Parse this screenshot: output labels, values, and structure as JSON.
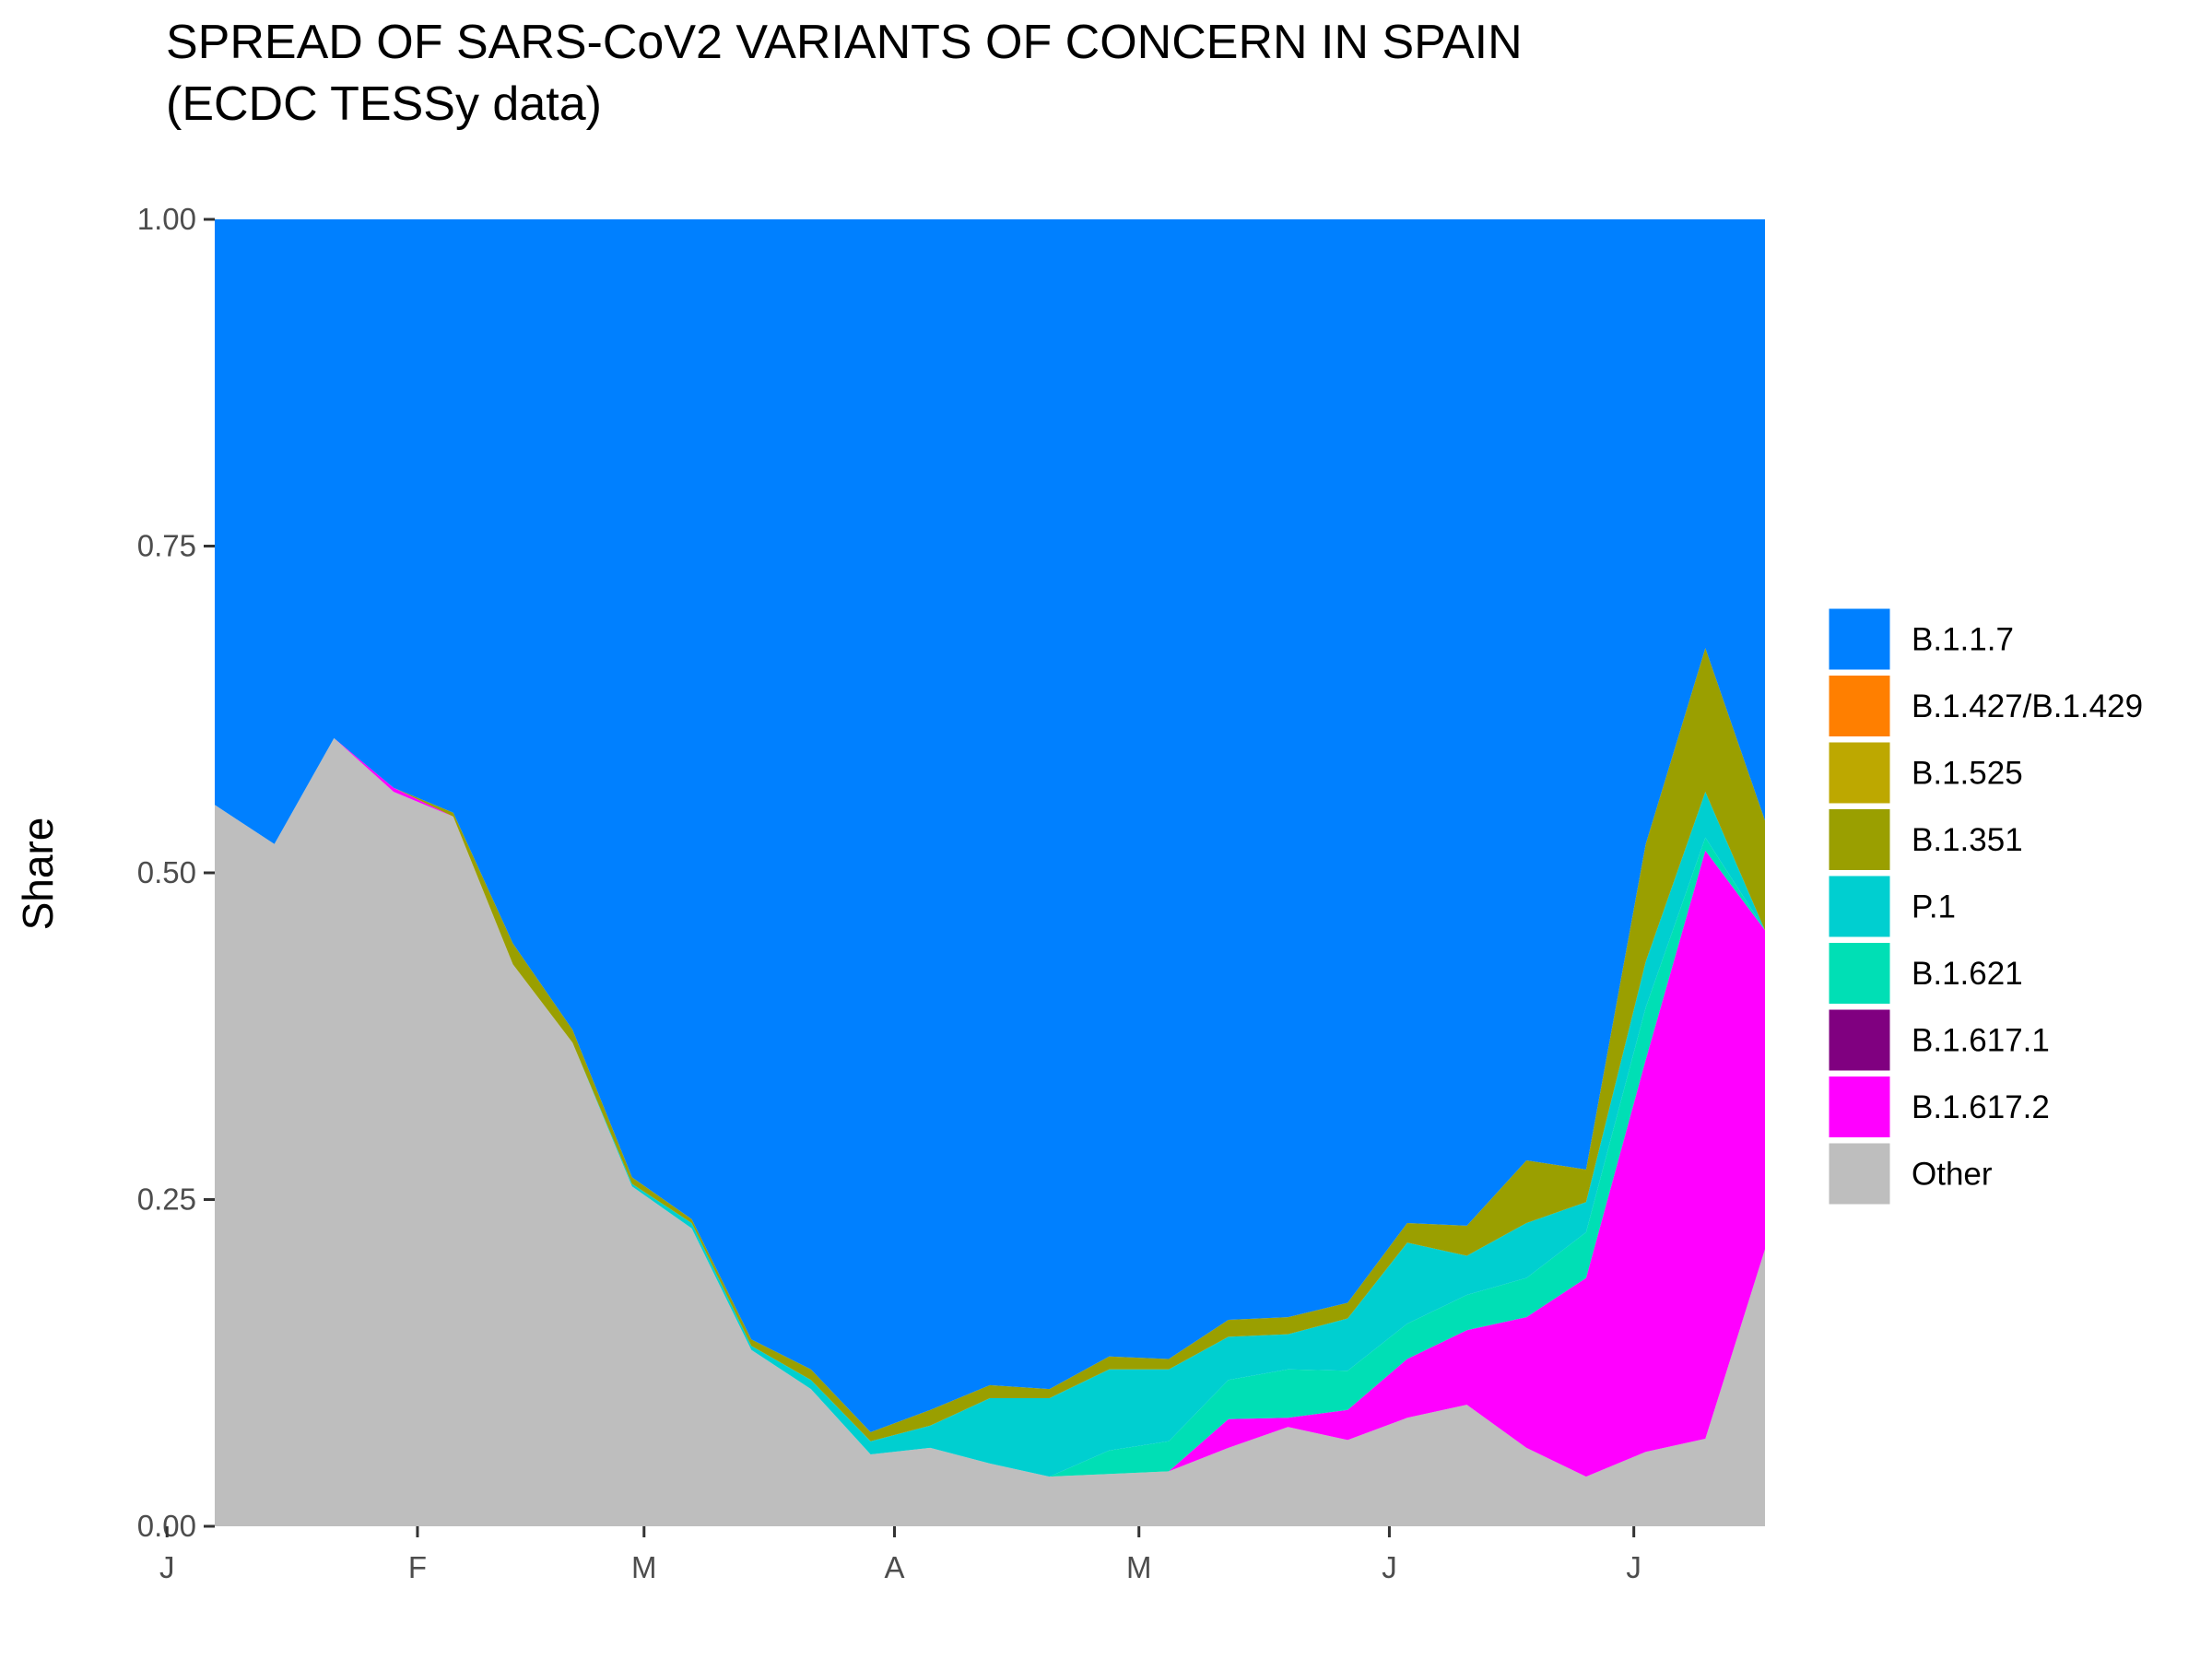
{
  "chart_data": {
    "type": "area",
    "stacked": true,
    "normalized": true,
    "title": "SPREAD OF SARS-CoV2 VARIANTS OF CONCERN IN SPAIN",
    "subtitle": "(ECDC TESSy data)",
    "ylabel": "Share",
    "xlabel": "",
    "ylim": [
      0,
      1
    ],
    "y_ticks": [
      "0.00",
      "0.25",
      "0.50",
      "0.75",
      "1.00"
    ],
    "x_tick_labels": [
      "J",
      "F",
      "M",
      "A",
      "M",
      "J",
      "J"
    ],
    "x_tick_weeks": [
      -0.8,
      3.4,
      7.2,
      11.4,
      15.5,
      19.7,
      23.8
    ],
    "weeks": [
      0,
      1,
      2,
      3,
      4,
      5,
      6,
      7,
      8,
      9,
      10,
      11,
      12,
      13,
      14,
      15,
      16,
      17,
      18,
      19,
      20,
      21,
      22,
      23,
      24,
      25,
      26
    ],
    "grid": false,
    "legend_position": "right",
    "series": [
      {
        "name": "Other",
        "color": "#bebebe",
        "values": [
          0.552,
          0.522,
          0.603,
          0.562,
          0.543,
          0.43,
          0.37,
          0.26,
          0.228,
          0.135,
          0.105,
          0.055,
          0.06,
          0.048,
          0.038,
          0.04,
          0.042,
          0.06,
          0.076,
          0.066,
          0.083,
          0.093,
          0.06,
          0.038,
          0.057,
          0.067,
          0.212
        ]
      },
      {
        "name": "B.1.617.2",
        "color": "#ff00ff",
        "values": [
          0,
          0,
          0,
          0.003,
          0,
          0,
          0,
          0,
          0,
          0,
          0,
          0,
          0,
          0,
          0,
          0,
          0,
          0.022,
          0.007,
          0.023,
          0.045,
          0.057,
          0.1,
          0.152,
          0.3,
          0.45,
          0.244
        ]
      },
      {
        "name": "B.1.617.1",
        "color": "#800080",
        "values": [
          0,
          0,
          0,
          0,
          0,
          0,
          0,
          0,
          0,
          0,
          0,
          0,
          0,
          0,
          0,
          0,
          0,
          0,
          0,
          0,
          0,
          0,
          0,
          0,
          0,
          0,
          0
        ]
      },
      {
        "name": "B.1.621",
        "color": "#00dfb5",
        "values": [
          0,
          0,
          0,
          0,
          0,
          0,
          0,
          0,
          0,
          0,
          0,
          0,
          0,
          0,
          0,
          0.018,
          0.023,
          0.03,
          0.037,
          0.03,
          0.027,
          0.027,
          0.03,
          0.035,
          0.04,
          0.01,
          0.0
        ]
      },
      {
        "name": "P.1",
        "color": "#00cfd0",
        "values": [
          0,
          0,
          0,
          0,
          0,
          0,
          0,
          0.002,
          0.004,
          0.003,
          0.007,
          0.01,
          0.017,
          0.05,
          0.06,
          0.062,
          0.055,
          0.033,
          0.027,
          0.04,
          0.062,
          0.03,
          0.042,
          0.023,
          0.035,
          0.035,
          0.0
        ]
      },
      {
        "name": "B.1.351",
        "color": "#9a9f00",
        "values": [
          0,
          0,
          0,
          0,
          0.003,
          0.016,
          0.01,
          0.005,
          0.003,
          0.005,
          0.008,
          0.007,
          0.012,
          0.01,
          0.007,
          0.01,
          0.008,
          0.013,
          0.013,
          0.012,
          0.015,
          0.023,
          0.048,
          0.025,
          0.09,
          0.11,
          0.084
        ]
      },
      {
        "name": "B.1.525",
        "color": "#bda800",
        "values": [
          0,
          0,
          0,
          0,
          0,
          0,
          0,
          0,
          0,
          0,
          0,
          0,
          0,
          0,
          0,
          0,
          0,
          0,
          0,
          0,
          0,
          0,
          0,
          0,
          0,
          0,
          0
        ]
      },
      {
        "name": "B.1.427/B.1.429",
        "color": "#ff7f00",
        "values": [
          0,
          0,
          0,
          0,
          0,
          0,
          0,
          0,
          0,
          0,
          0,
          0,
          0,
          0,
          0,
          0,
          0,
          0,
          0,
          0,
          0,
          0,
          0,
          0,
          0,
          0,
          0
        ]
      },
      {
        "name": "B.1.1.7",
        "color": "#0080ff",
        "values": [
          0.448,
          0.478,
          0.397,
          0.435,
          0.454,
          0.554,
          0.62,
          0.733,
          0.765,
          0.857,
          0.88,
          0.928,
          0.911,
          0.892,
          0.895,
          0.87,
          0.872,
          0.842,
          0.84,
          0.829,
          0.768,
          0.77,
          0.72,
          0.727,
          0.478,
          0.328,
          0.46
        ]
      }
    ],
    "legend_order": [
      "B.1.1.7",
      "B.1.427/B.1.429",
      "B.1.525",
      "B.1.351",
      "P.1",
      "B.1.621",
      "B.1.617.1",
      "B.1.617.2",
      "Other"
    ]
  }
}
